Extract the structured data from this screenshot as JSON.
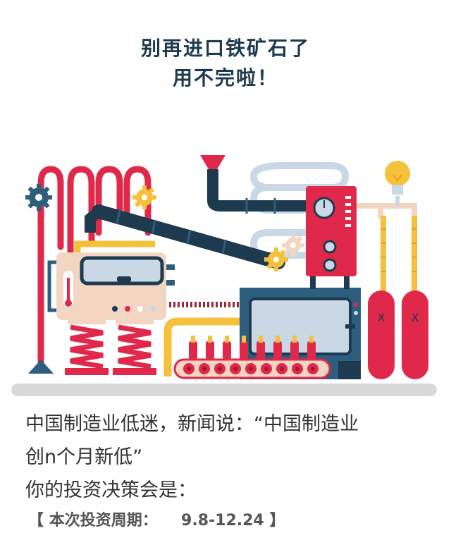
{
  "header": {
    "line1": "别再进口铁矿石了",
    "line2": "用不完啦！"
  },
  "illustration": {
    "tank_left_mark": "X",
    "tank_right_mark": "X",
    "colors": {
      "navy": "#1e3a4f",
      "red": "#e0294a",
      "yellow": "#f5c03a",
      "light_blue": "#c9d8e4",
      "beige": "#f3d6c2",
      "gray": "#d8d8d8",
      "steel_blue": "#2e5e7e"
    }
  },
  "question": {
    "line1": "中国制造业低迷，新闻说：“中国制造业",
    "line2": "创n个月新低”",
    "line3": "你的投资决策会是："
  },
  "period": {
    "open_bracket": "【",
    "label": "本次投资周期：",
    "value": "9.8-12.24",
    "close_bracket": "】"
  }
}
